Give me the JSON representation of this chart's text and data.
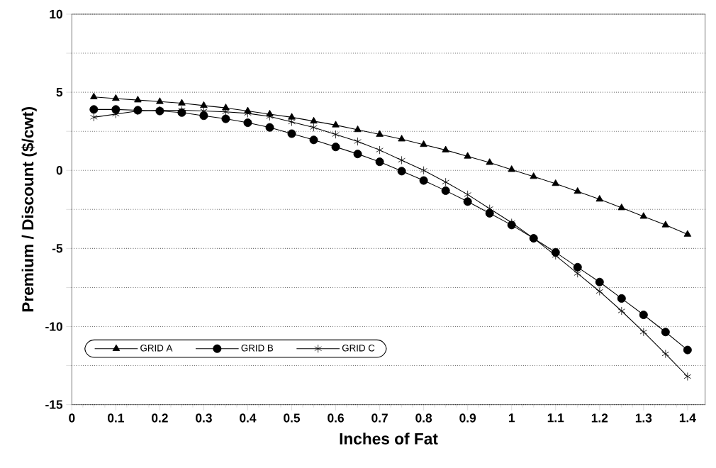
{
  "chart_data": {
    "type": "line",
    "xlabel": "Inches of Fat",
    "ylabel": "Premium / Discount ($/cwt)",
    "x": [
      0.05,
      0.1,
      0.15,
      0.2,
      0.25,
      0.3,
      0.35,
      0.4,
      0.45,
      0.5,
      0.55,
      0.6,
      0.65,
      0.7,
      0.75,
      0.8,
      0.85,
      0.9,
      0.95,
      1.0,
      1.05,
      1.1,
      1.15,
      1.2,
      1.25,
      1.3,
      1.35,
      1.4
    ],
    "series": [
      {
        "name": "GRID A",
        "color": "#000000",
        "marker": "triangle",
        "values": [
          4.7,
          4.6,
          4.5,
          4.4,
          4.3,
          4.15,
          4.0,
          3.8,
          3.6,
          3.4,
          3.15,
          2.9,
          2.6,
          2.3,
          2.0,
          1.65,
          1.3,
          0.9,
          0.5,
          0.05,
          -0.4,
          -0.85,
          -1.35,
          -1.85,
          -2.4,
          -2.95,
          -3.5,
          -4.1
        ]
      },
      {
        "name": "GRID B",
        "color": "#000000",
        "marker": "circle",
        "values": [
          3.9,
          3.9,
          3.85,
          3.8,
          3.7,
          3.5,
          3.3,
          3.05,
          2.75,
          2.35,
          1.95,
          1.5,
          1.05,
          0.55,
          -0.05,
          -0.65,
          -1.3,
          -2.0,
          -2.75,
          -3.5,
          -4.35,
          -5.25,
          -6.2,
          -7.15,
          -8.2,
          -9.25,
          -10.35,
          -11.5
        ]
      },
      {
        "name": "GRID C",
        "color": "#000000",
        "marker": "cross",
        "values": [
          3.4,
          3.6,
          3.8,
          3.85,
          3.85,
          3.8,
          3.75,
          3.65,
          3.45,
          3.1,
          2.75,
          2.3,
          1.85,
          1.3,
          0.65,
          0.0,
          -0.75,
          -1.55,
          -2.45,
          -3.35,
          -4.35,
          -5.45,
          -6.6,
          -7.75,
          -9.0,
          -10.35,
          -11.75,
          -13.2
        ]
      }
    ],
    "xlim": [
      0,
      1.44
    ],
    "xticks": [
      0,
      0.1,
      0.2,
      0.3,
      0.4,
      0.5,
      0.6,
      0.7,
      0.8,
      0.9,
      1,
      1.1,
      1.2,
      1.3,
      1.4
    ],
    "ylim": [
      -15,
      10
    ],
    "yticks": [
      -15,
      {
        "value": -12.5,
        "label": null
      },
      -10,
      {
        "value": -7.5,
        "label": null
      },
      -5,
      {
        "value": -2.5,
        "label": null
      },
      0,
      {
        "value": 2.5,
        "label": null
      },
      5,
      {
        "value": 7.5,
        "label": null
      },
      10
    ],
    "grid": "y",
    "legend": "bottom left",
    "line_style": "solid"
  }
}
